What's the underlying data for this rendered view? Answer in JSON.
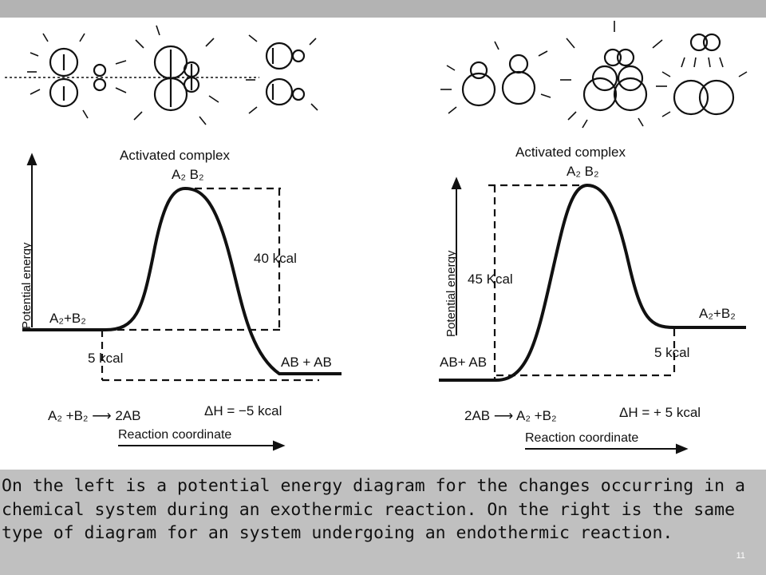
{
  "caption": "On the left is a potential energy diagram for the changes occurring in a chemical system during an exothermic reaction. On the right is the same type of diagram for an system undergoing an endothermic reaction.",
  "slide_number": "11",
  "left_diagram": {
    "title": "Activated complex",
    "peak": "A₂ B₂",
    "y_axis": "Potential energy",
    "x_axis": "Reaction coordinate",
    "start": "A₂+B₂",
    "end": "AB + AB",
    "barrier": "40 kcal",
    "difference": "5 kcal",
    "equation": "A₂ +B₂ ⟶ 2AB",
    "delta_h": "ΔH = −5 kcal"
  },
  "right_diagram": {
    "title": "Activated complex",
    "peak": "A₂ B₂",
    "y_axis": "Potential energy",
    "x_axis": "Reaction coordinate",
    "start": "AB+ AB",
    "end": "A₂+B₂",
    "barrier": "45 Kcal",
    "difference": "5 kcal",
    "equation": "2AB ⟶ A₂ +B₂",
    "delta_h": "ΔH = + 5 kcal"
  },
  "colors": {
    "caption_background": "#c0c0c0",
    "top_bar": "#b3b3b3",
    "ink": "#111111"
  }
}
